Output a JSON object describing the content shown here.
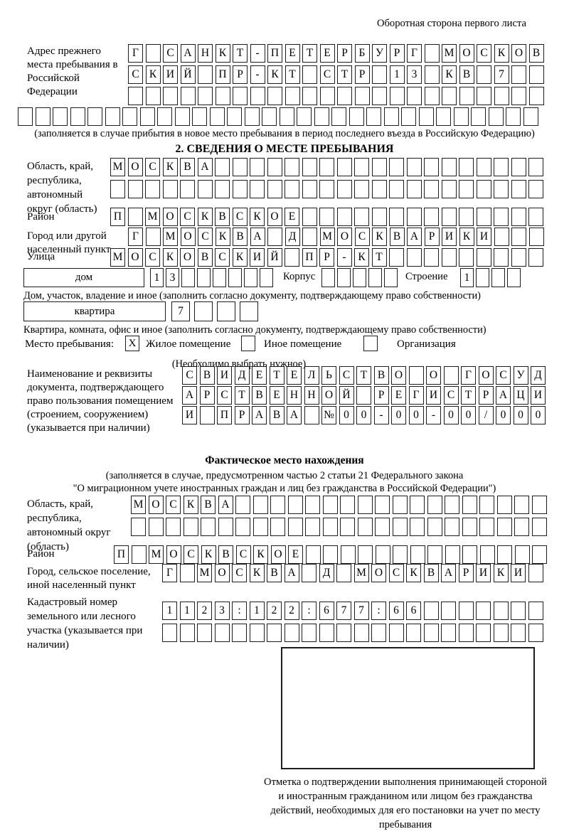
{
  "header": {
    "back_side_label": "Оборотная сторона первого листа"
  },
  "previous_address": {
    "label": "Адрес прежнего места пребывания в Российской Федерации",
    "rows": [
      {
        "n": 24,
        "v": "Г САНКТ-ПЕТЕРБУРГ МОСКОВ"
      },
      {
        "n": 24,
        "v": "СКИЙ ПР-КТ СТР 13 КВ 7"
      },
      {
        "n": 24,
        "v": ""
      },
      {
        "n": 30,
        "v": ""
      }
    ],
    "note": "(заполняется в случае прибытия в новое место пребывания в период последнего въезда в Российскую Федерацию)"
  },
  "stay_info": {
    "title": "2. СВЕДЕНИЯ О МЕСТЕ ПРЕБЫВАНИЯ",
    "region": {
      "label": "Область, край, республика, автономный округ (область)",
      "rows": [
        {
          "n": 25,
          "v": "МОСКВА"
        },
        {
          "n": 25,
          "v": ""
        }
      ]
    },
    "district": {
      "label": "Район",
      "row": {
        "n": 25,
        "v": "П МОСКВСКОЕ"
      }
    },
    "city": {
      "label": "Город или другой населенный пункт",
      "row": {
        "n": 24,
        "v": "Г МОСКВА Д МОСКВАРИКИ"
      }
    },
    "street": {
      "label": "Улица",
      "row": {
        "n": 25,
        "v": "МОСКОВСКИЙ ПР-КТ"
      }
    },
    "house": {
      "box_label": "дом",
      "row": {
        "n": 8,
        "v": "13"
      },
      "korpus_label": "Корпус",
      "korpus_row": {
        "n": 5,
        "v": ""
      },
      "stroenie_label": "Строение",
      "stroenie_row": {
        "n": 4,
        "v": "1"
      },
      "note": "Дом, участок, владение и иное (заполнить согласно документу, подтверждающему право собственности)"
    },
    "apartment": {
      "box_label": "квартира",
      "row": {
        "n": 4,
        "v": "7"
      },
      "note": "Квартира, комната, офис и иное (заполнить согласно документу, подтверждающему право собственности)"
    },
    "residence_type": {
      "label": "Место пребывания:",
      "options": [
        {
          "label": "Жилое помещение",
          "mark": "X"
        },
        {
          "label": "Иное помещение",
          "mark": ""
        },
        {
          "label": "Организация",
          "mark": ""
        }
      ],
      "note": "(Необходимо выбрать нужное)"
    },
    "document": {
      "label": "Наименование и реквизиты документа, подтверждающего право пользования помещением (строением, сооружением) (указывается при наличии)",
      "rows": [
        {
          "n": 21,
          "v": "СВИДЕТЕЛЬСТВО О ГОСУД"
        },
        {
          "n": 21,
          "v": "АРСТВЕННОЙ РЕГИСТРАЦИ"
        },
        {
          "n": 21,
          "v": "И ПРАВА №00-00-00/000"
        }
      ]
    }
  },
  "actual_location": {
    "title": "Фактическое место нахождения",
    "note_line1": "(заполняется в случае, предусмотренном частью 2 статьи 21 Федерального закона",
    "note_line2": "\"О миграционном учете иностранных граждан и лиц без гражданства в Российской Федерации\")",
    "region": {
      "label": "Область, край, республика, автономный округ (область)",
      "rows": [
        {
          "n": 24,
          "v": "МОСКВА"
        },
        {
          "n": 24,
          "v": ""
        }
      ]
    },
    "district": {
      "label": "Район",
      "row": {
        "n": 25,
        "v": "П МОСКВСКОЕ"
      }
    },
    "city": {
      "label": "Город, сельское поселение, иной населенный пункт",
      "row": {
        "n": 22,
        "v": "Г МОСКВА Д МОСКВАРИКИ"
      }
    },
    "cadastral": {
      "label": "Кадастровый номер земельного или лесного участка (указывается при наличии)",
      "rows": [
        {
          "n": 22,
          "v": "1123:122:677:66"
        },
        {
          "n": 22,
          "v": ""
        }
      ]
    }
  },
  "confirmation": {
    "caption": "Отметка о подтверждении выполнения принимающей стороной и иностранным гражданином или лицом без гражданства действий, необходимых для его постановки на учет по месту пребывания"
  }
}
